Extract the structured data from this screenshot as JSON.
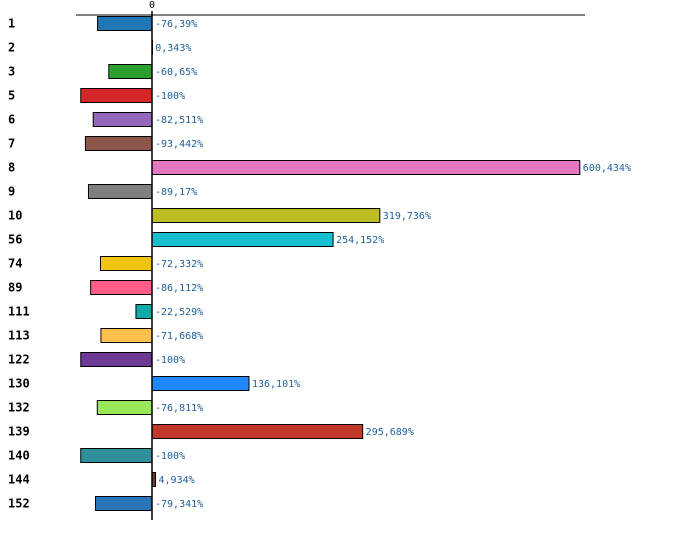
{
  "chart_data": {
    "type": "bar",
    "orientation": "horizontal",
    "categories": [
      "1",
      "2",
      "3",
      "5",
      "6",
      "7",
      "8",
      "9",
      "10",
      "56",
      "74",
      "89",
      "111",
      "113",
      "122",
      "130",
      "132",
      "139",
      "140",
      "144",
      "152"
    ],
    "values": [
      -76.39,
      0.343,
      -60.65,
      -100,
      -82.511,
      -93.442,
      600.434,
      -89.17,
      319.736,
      254.152,
      -72.332,
      -86.112,
      -22.529,
      -71.668,
      -100,
      136.101,
      -76.811,
      295.689,
      -100,
      4.934,
      -79.341
    ],
    "value_labels": [
      "-76,39%",
      "0,343%",
      "-60,65%",
      "-100%",
      "-82,511%",
      "-93,442%",
      "600,434%",
      "-89,17%",
      "319,736%",
      "254,152%",
      "-72,332%",
      "-86,112%",
      "-22,529%",
      "-71,668%",
      "-100%",
      "136,101%",
      "-76,811%",
      "295,689%",
      "-100%",
      "4,934%",
      "-79,341%"
    ],
    "colors": [
      "#1f77b4",
      "#ff7f0e",
      "#2ca02c",
      "#d62728",
      "#9467bd",
      "#8c564b",
      "#e377c2",
      "#7f7f7f",
      "#bcbd22",
      "#17becf",
      "#f1c40f",
      "#ff5c8a",
      "#12aaa8",
      "#ffc04d",
      "#6f3a96",
      "#1f87ff",
      "#99e85a",
      "#c0392b",
      "#2f8f9a",
      "#6b3f2a",
      "#2a74b8"
    ],
    "x_ticks": [
      "0"
    ],
    "xlim": [
      -107,
      608
    ],
    "title": "",
    "xlabel": "",
    "ylabel": "",
    "grid": false,
    "legend": "none"
  }
}
